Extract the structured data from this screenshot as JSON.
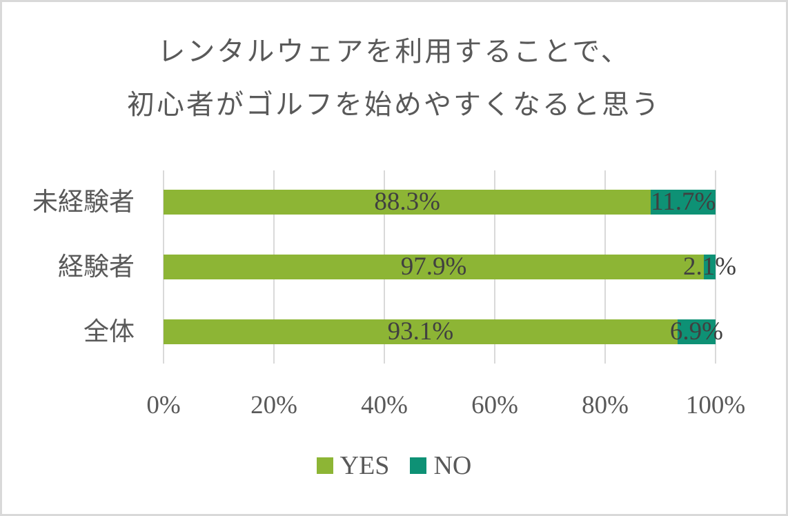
{
  "chart_data": {
    "type": "bar",
    "orientation": "horizontal",
    "stacked": "percent",
    "title": "レンタルウェアを利用することで、初心者がゴルフを始めやすくなると思う",
    "title_lines": [
      "レンタルウェアを利用することで、",
      "初心者がゴルフを始めやすくなると思う"
    ],
    "categories": [
      "未経験者",
      "経験者",
      "全体"
    ],
    "series": [
      {
        "name": "YES",
        "color": "#8db535",
        "values": [
          88.3,
          97.9,
          93.1
        ],
        "labels": [
          "88.3%",
          "97.9%",
          "93.1%"
        ]
      },
      {
        "name": "NO",
        "color": "#0e9175",
        "values": [
          11.7,
          2.1,
          6.9
        ],
        "labels": [
          "11.7%",
          "2.1%",
          "6.9%"
        ]
      }
    ],
    "xlabel": "",
    "ylabel": "",
    "xlim": [
      0,
      100
    ],
    "x_ticks": [
      "0%",
      "20%",
      "40%",
      "60%",
      "80%",
      "100%"
    ],
    "grid": true,
    "legend": {
      "position": "bottom",
      "entries": [
        "YES",
        "NO"
      ]
    }
  }
}
